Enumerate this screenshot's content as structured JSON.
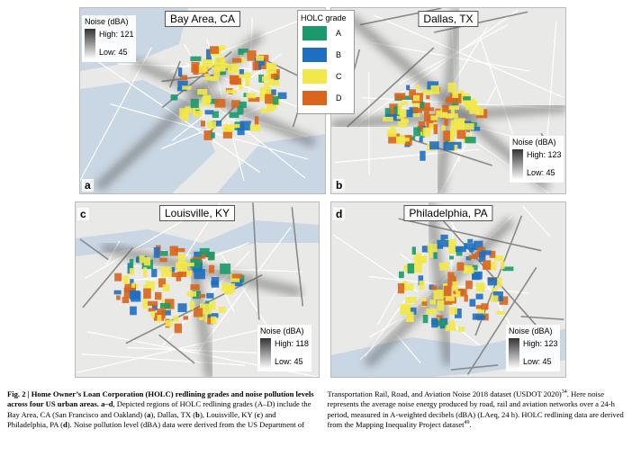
{
  "panels": [
    {
      "letter": "a",
      "title": "Bay Area, CA",
      "noise_title": "Noise (dBA)",
      "high": "High: 121",
      "low": "Low: 45"
    },
    {
      "letter": "b",
      "title": "Dallas, TX",
      "noise_title": "Noise (dBA)",
      "high": "High: 123",
      "low": "Low: 45"
    },
    {
      "letter": "c",
      "title": "Louisville, KY",
      "noise_title": "Noise (dBA)",
      "high": "High: 118",
      "low": "Low: 45"
    },
    {
      "letter": "d",
      "title": "Philadelphia, PA",
      "noise_title": "Noise (dBA)",
      "high": "High: 123",
      "low": "Low: 45"
    }
  ],
  "holc_legend": {
    "title": "HOLC grade",
    "grades": [
      {
        "label": "A",
        "color": "#1a9a6c"
      },
      {
        "label": "B",
        "color": "#1f6fc0"
      },
      {
        "label": "C",
        "color": "#f2e84a"
      },
      {
        "label": "D",
        "color": "#d9661c"
      }
    ]
  },
  "caption": {
    "segments": [
      "Fig. 2 | Home Owner’s Loan Corporation (HOLC) redlining grades and noise pollution levels across four US urban areas. ",
      "a–d",
      ", Depicted regions of HOLC redlining grades (A–D) include the Bay Area, CA (San Francisco and Oakland) (",
      "a",
      "), Dallas, TX (",
      "b",
      "), Louisville, KY (",
      "c",
      ") and Philadelphia, PA (",
      "d",
      "). Noise pollution level (dBA) data were derived from the US Department of Transportation Rail, Road, and Aviation Noise 2018 dataset (USDOT 2020)",
      "34",
      ". Here noise represents the average noise energy produced by road, rail and aviation networks over a 24-h period, measured in A-weighted decibels (dBA) (LAeq, 24 h). HOLC redlining data are derived from the Mapping Inequality Project dataset",
      "49",
      "."
    ]
  }
}
